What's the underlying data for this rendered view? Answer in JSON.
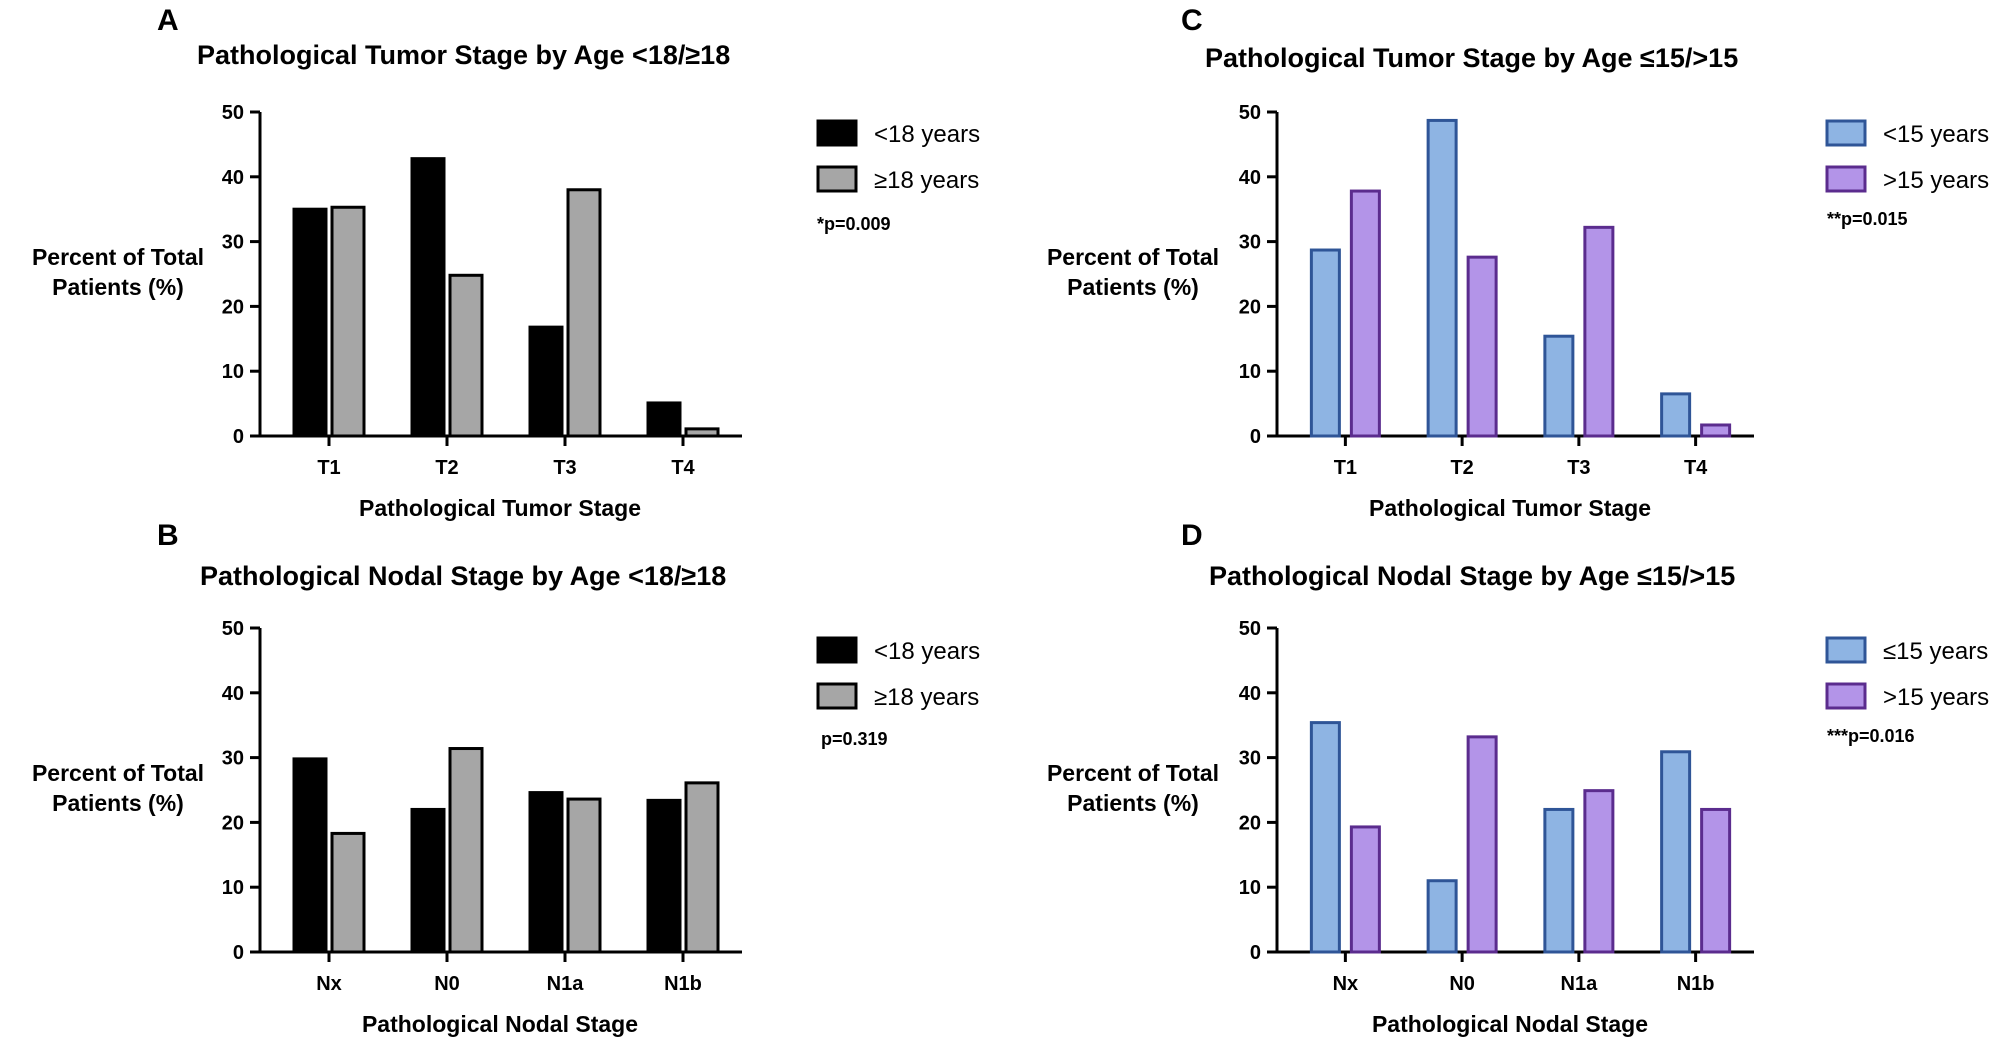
{
  "chart_data": [
    {
      "type": "bar",
      "panel": "A",
      "title": "Pathological Tumor Stage by Age <18/≥18",
      "xlabel": "Pathological Tumor Stage",
      "ylabel": [
        "Percent of Total",
        "Patients (%)"
      ],
      "ylim": [
        0,
        50
      ],
      "yticks": [
        0,
        10,
        20,
        30,
        40,
        50
      ],
      "categories": [
        "T1",
        "T2",
        "T3",
        "T4"
      ],
      "series": [
        {
          "name": "<18 years",
          "values": [
            35,
            42.8,
            16.8,
            5.1
          ],
          "fill": "#000000",
          "stroke": "#000000"
        },
        {
          "name": "≥18 years",
          "values": [
            35.3,
            24.8,
            38,
            1.1
          ],
          "fill": "#a6a6a6",
          "stroke": "#000000"
        }
      ],
      "annotation": "*p=0.009"
    },
    {
      "type": "bar",
      "panel": "B",
      "title": "Pathological Nodal Stage by Age <18/≥18",
      "xlabel": "Pathological Nodal Stage",
      "ylabel": [
        "Percent of Total",
        "Patients (%)"
      ],
      "ylim": [
        0,
        50
      ],
      "yticks": [
        0,
        10,
        20,
        30,
        40,
        50
      ],
      "categories": [
        "Nx",
        "N0",
        "N1a",
        "N1b"
      ],
      "series": [
        {
          "name": "<18 years",
          "values": [
            29.8,
            22,
            24.6,
            23.4
          ],
          "fill": "#000000",
          "stroke": "#000000"
        },
        {
          "name": "≥18 years",
          "values": [
            18.3,
            31.4,
            23.6,
            26.1
          ],
          "fill": "#a6a6a6",
          "stroke": "#000000"
        }
      ],
      "annotation": "p=0.319"
    },
    {
      "type": "bar",
      "panel": "C",
      "title": "Pathological Tumor Stage by Age ≤15/>15",
      "xlabel": "Pathological Tumor Stage",
      "ylabel": [
        "Percent of Total",
        "Patients (%)"
      ],
      "ylim": [
        0,
        50
      ],
      "yticks": [
        0,
        10,
        20,
        30,
        40,
        50
      ],
      "categories": [
        "T1",
        "T2",
        "T3",
        "T4"
      ],
      "series": [
        {
          "name": "<15 years",
          "values": [
            28.7,
            48.7,
            15.4,
            6.5
          ],
          "fill": "#8eb4e3",
          "stroke": "#2f5597"
        },
        {
          "name": ">15 years",
          "values": [
            37.8,
            27.6,
            32.2,
            1.7
          ],
          "fill": "#b394e8",
          "stroke": "#5b2c8e"
        }
      ],
      "annotation": "**p=0.015"
    },
    {
      "type": "bar",
      "panel": "D",
      "title": "Pathological Nodal Stage by Age ≤15/>15",
      "xlabel": "Pathological Nodal Stage",
      "ylabel": [
        "Percent of Total",
        "Patients (%)"
      ],
      "ylim": [
        0,
        50
      ],
      "yticks": [
        0,
        10,
        20,
        30,
        40,
        50
      ],
      "categories": [
        "Nx",
        "N0",
        "N1a",
        "N1b"
      ],
      "series": [
        {
          "name": "≤15 years",
          "values": [
            35.4,
            11,
            22,
            30.9
          ],
          "fill": "#8eb4e3",
          "stroke": "#2f5597"
        },
        {
          "name": ">15 years",
          "values": [
            19.3,
            33.2,
            24.9,
            22
          ],
          "fill": "#b394e8",
          "stroke": "#5b2c8e"
        }
      ],
      "annotation": "***p=0.016"
    }
  ]
}
